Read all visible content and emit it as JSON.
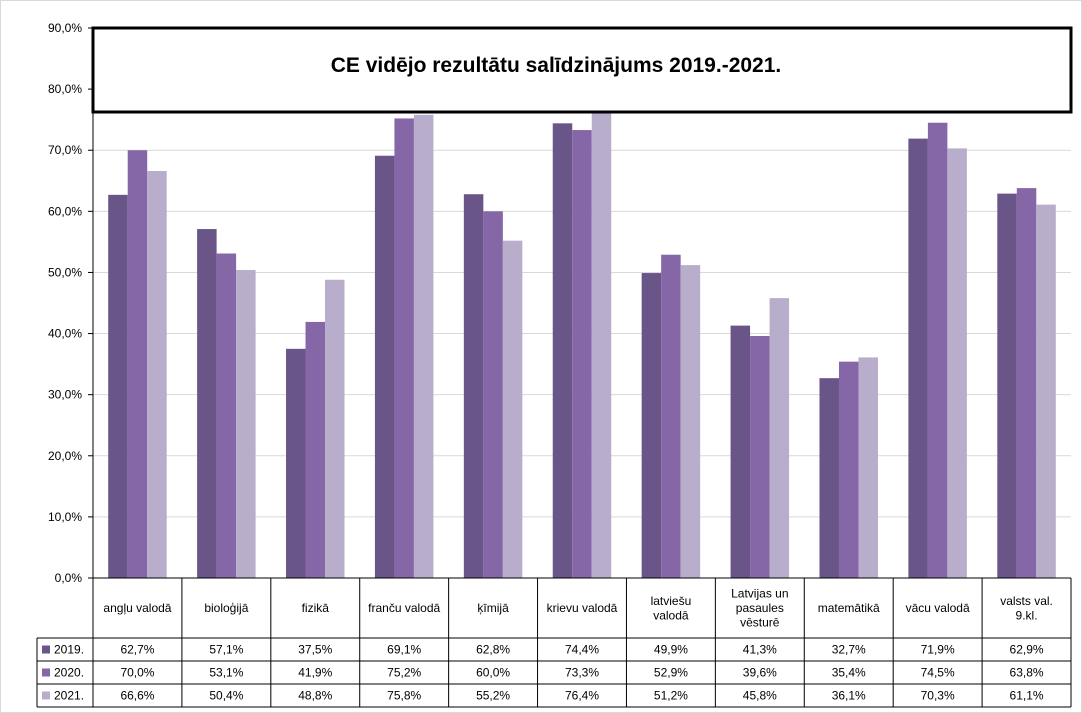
{
  "chart_data": {
    "type": "bar",
    "title": "CE vidējo rezultātu salīdzinājums 2019.-2021.",
    "ylim": [
      0,
      90
    ],
    "y_ticks": [
      "0,0%",
      "10,0%",
      "20,0%",
      "30,0%",
      "40,0%",
      "50,0%",
      "60,0%",
      "70,0%",
      "80,0%",
      "90,0%"
    ],
    "grid": true,
    "legend": "data-table",
    "categories": [
      [
        "angļu valodā"
      ],
      [
        "bioloģijā"
      ],
      [
        "fizikā"
      ],
      [
        "franču valodā"
      ],
      [
        "ķīmijā"
      ],
      [
        "krievu valodā"
      ],
      [
        "latviešu",
        "valodā"
      ],
      [
        "Latvijas un",
        "pasaules",
        "vēsturē"
      ],
      [
        "matemātikā"
      ],
      [
        "vācu valodā"
      ],
      [
        "valsts val.",
        "9.kl."
      ]
    ],
    "series": [
      {
        "name": "2019.",
        "color": "#6a5588",
        "values": [
          62.7,
          57.1,
          37.5,
          69.1,
          62.8,
          74.4,
          49.9,
          41.3,
          32.7,
          71.9,
          62.9
        ],
        "labels": [
          "62,7%",
          "57,1%",
          "37,5%",
          "69,1%",
          "62,8%",
          "74,4%",
          "49,9%",
          "41,3%",
          "32,7%",
          "71,9%",
          "62,9%"
        ]
      },
      {
        "name": "2020.",
        "color": "#8567a7",
        "values": [
          70.0,
          53.1,
          41.9,
          75.2,
          60.0,
          73.3,
          52.9,
          39.6,
          35.4,
          74.5,
          63.8
        ],
        "labels": [
          "70,0%",
          "53,1%",
          "41,9%",
          "75,2%",
          "60,0%",
          "73,3%",
          "52,9%",
          "39,6%",
          "35,4%",
          "74,5%",
          "63,8%"
        ]
      },
      {
        "name": "2021.",
        "color": "#b8aecc",
        "values": [
          66.6,
          50.4,
          48.8,
          75.8,
          55.2,
          76.4,
          51.2,
          45.8,
          36.1,
          70.3,
          61.1
        ],
        "labels": [
          "66,6%",
          "50,4%",
          "48,8%",
          "75,8%",
          "55,2%",
          "76,4%",
          "51,2%",
          "45,8%",
          "36,1%",
          "70,3%",
          "61,1%"
        ]
      }
    ]
  }
}
